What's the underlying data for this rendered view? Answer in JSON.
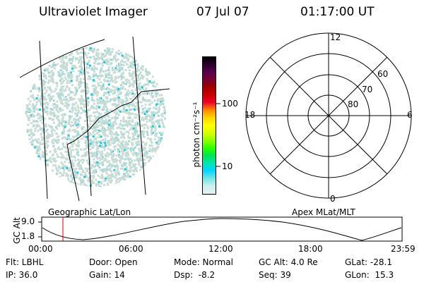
{
  "header": {
    "instrument": "Ultraviolet Imager",
    "date": "07 Jul 07",
    "time": "01:17:00 UT"
  },
  "left_panel": {
    "label": "Geographic Lat/Lon"
  },
  "colorbar": {
    "unit_label": "photon cm⁻²s⁻¹",
    "ticks": [
      "100",
      "10"
    ],
    "colors": [
      "#000000",
      "#2d0030",
      "#5a0050",
      "#7a0030",
      "#a00000",
      "#cc0000",
      "#f0002a",
      "#ff8c00",
      "#ffd200",
      "#ffff00",
      "#d2ff00",
      "#8cff00",
      "#28ff00",
      "#00e650",
      "#00e6b4",
      "#00d7ff",
      "#78e6e6",
      "#c8f0f0",
      "#e6f0f0"
    ]
  },
  "right_panel": {
    "label": "Apex MLat/MLT",
    "mlt_labels": [
      "12",
      "18",
      "6",
      "0"
    ],
    "mlat_labels": [
      "60",
      "70",
      "80"
    ]
  },
  "altitude_plot": {
    "ylabel": "GC Alt",
    "yticks": [
      "9.0",
      "1.8"
    ],
    "xticks": [
      "00:00",
      "06:00",
      "12:00",
      "18:00",
      "23:59"
    ],
    "marker_color": "#cc0000"
  },
  "footer": {
    "flt": "Flt: LBHL",
    "ip": "IP: 36.0",
    "door": "Door: Open",
    "gain": "Gain: 14",
    "mode": "Mode: Normal",
    "dsp": "Dsp:  -8.2",
    "gcalt": "GC Alt: 4.0 Re",
    "seq": "Seq: 39",
    "glat": "GLat: -28.1",
    "glon": "GLon:  15.3"
  },
  "map_colors": {
    "speckle_light": "#c8dcd6",
    "speckle_mid": "#9fd8d8",
    "speckle_cyan": "#19c8dc"
  }
}
